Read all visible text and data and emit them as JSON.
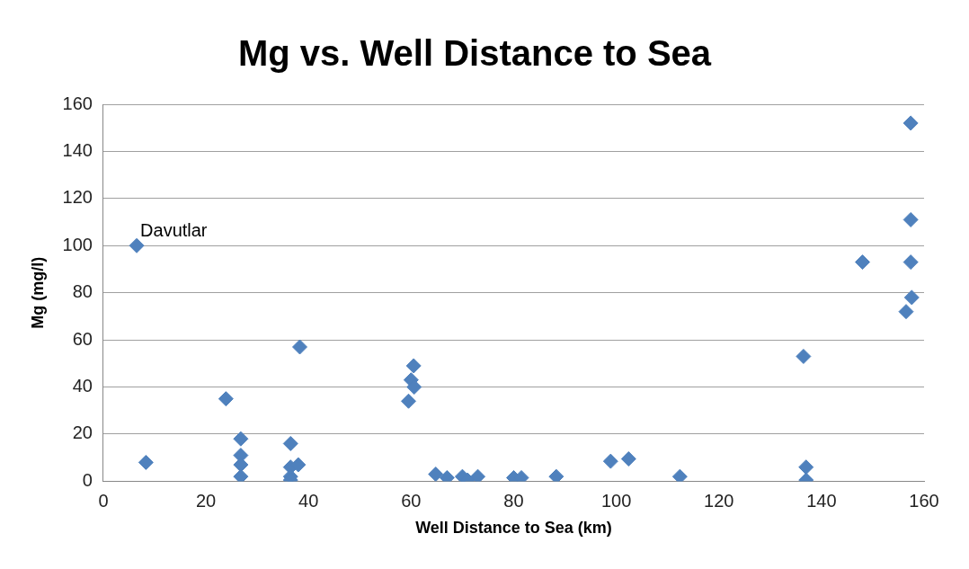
{
  "chart_data": {
    "type": "scatter",
    "title": "Mg vs. Well Distance to Sea",
    "xlabel": "Well Distance to Sea (km)",
    "ylabel": "Mg (mg/l)",
    "x": [
      6.5,
      8.3,
      23.9,
      26.8,
      26.8,
      26.8,
      26.8,
      36.5,
      36.5,
      36.5,
      36.5,
      38,
      38.3,
      60.5,
      60,
      60.6,
      59.5,
      64.8,
      67,
      70,
      71,
      73,
      80,
      81.5,
      88.3,
      98.9,
      102.4,
      112.4,
      136.5,
      137,
      137,
      148,
      157.4,
      157.4,
      157.4,
      157.6,
      156.5
    ],
    "series": [
      {
        "color": "#4f81bd",
        "values": [
          100,
          8,
          35,
          18,
          11,
          7,
          2,
          16,
          6,
          2,
          0.5,
          7,
          57,
          49,
          43,
          40,
          34,
          3,
          1.5,
          2,
          0.5,
          2,
          1.5,
          1.5,
          2,
          8.5,
          9.5,
          2,
          53,
          6,
          0.5,
          93,
          93,
          111,
          152,
          78,
          72
        ]
      }
    ],
    "xlim": [
      0,
      160
    ],
    "xticks": [
      0,
      20,
      40,
      60,
      80,
      100,
      120,
      140,
      160
    ],
    "ylim": [
      0,
      160
    ],
    "yticks": [
      0,
      20,
      40,
      60,
      80,
      100,
      120,
      140,
      160
    ],
    "grid": "y",
    "marker": "diamond",
    "legend": false,
    "annotations": [
      {
        "text": "Davutlar",
        "x": 6.5,
        "y": 100
      }
    ]
  }
}
